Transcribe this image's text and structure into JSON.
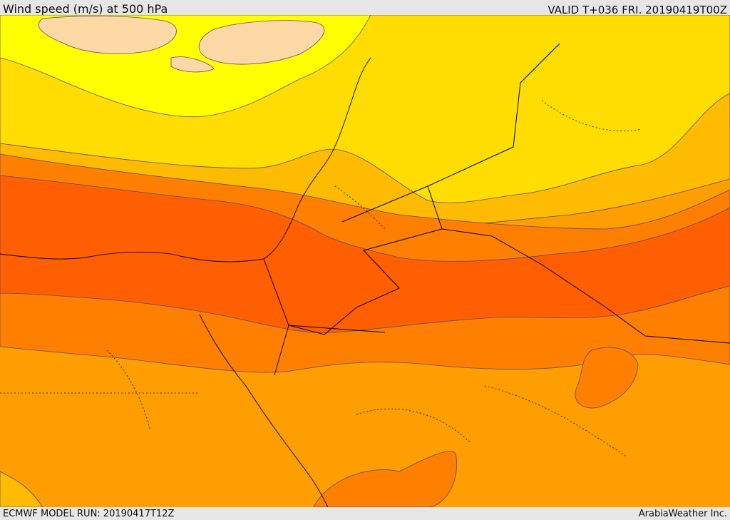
{
  "header": {
    "title": "Wind speed (m/s) at 500 hPa",
    "valid_time": "VALID T+036 FRI. 20190419T00Z"
  },
  "footer": {
    "model_run": "ECMWF MODEL RUN: 20190417T12Z",
    "credit": "ArabiaWeather Inc."
  },
  "map": {
    "field": "wind speed at 500 hPa",
    "fill_colors": {
      "lightest": "#fcd9a4",
      "light": "#ffff00",
      "mid_light": "#ffdd00",
      "mid": "#ffbb00",
      "mid_strong": "#ff9e00",
      "strong": "#ff7f00",
      "strongest": "#ff5f00"
    },
    "contour_color": "#5a4a7a",
    "border_color": "#000000"
  }
}
